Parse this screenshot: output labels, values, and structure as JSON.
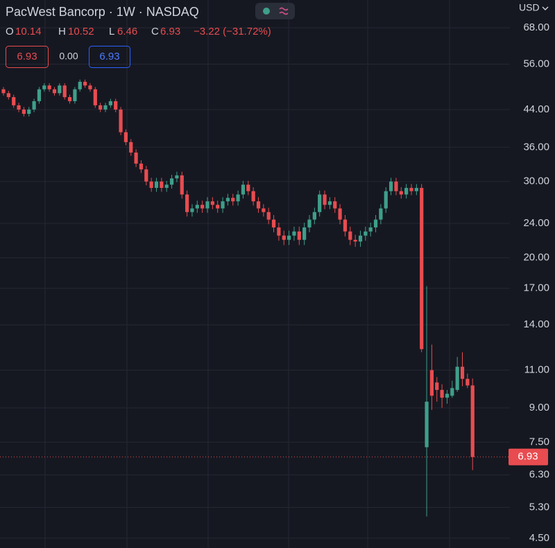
{
  "header": {
    "title": "PacWest Bancorp · 1W · NASDAQ",
    "labels": [
      "O",
      "H",
      "L",
      "C"
    ],
    "change": "−3.22 (−31.72%)",
    "spread": "0.00",
    "currency": "USD"
  },
  "chart_data": {
    "type": "candlestick",
    "log_scale": true,
    "grid": true,
    "up_color": "#3e9f8a",
    "down_color": "#e84c50",
    "ylim": [
      4.27,
      78.8
    ],
    "yticks": [
      {
        "value": 4.5,
        "label": "4.50"
      },
      {
        "value": 5.3,
        "label": "5.30"
      },
      {
        "value": 6.3,
        "label": "6.30"
      },
      {
        "value": 7.5,
        "label": "7.50"
      },
      {
        "value": 9,
        "label": "9.00"
      },
      {
        "value": 11,
        "label": "11.00"
      },
      {
        "value": 14,
        "label": "14.00"
      },
      {
        "value": 17,
        "label": "17.00"
      },
      {
        "value": 20,
        "label": "20.00"
      },
      {
        "value": 24,
        "label": "24.00"
      },
      {
        "value": 30,
        "label": "30.00"
      },
      {
        "value": 36,
        "label": "36.00"
      },
      {
        "value": 44,
        "label": "44.00"
      },
      {
        "value": 56,
        "label": "56.00"
      },
      {
        "value": 68,
        "label": "68.00"
      }
    ],
    "open": [
      49,
      48,
      47,
      45,
      44,
      43,
      44,
      46,
      49,
      50,
      49,
      48,
      50,
      47,
      46,
      49,
      51,
      50,
      49,
      45,
      44,
      45,
      46,
      44,
      39,
      37,
      35,
      33,
      32,
      30,
      29,
      30,
      29,
      29.5,
      30.5,
      31,
      28,
      25.5,
      26,
      26.5,
      26,
      27,
      26.5,
      26,
      27,
      27.5,
      27,
      28,
      29.5,
      28.5,
      27,
      26,
      25.5,
      24.5,
      23.5,
      22.5,
      22,
      22.5,
      23,
      22,
      23.5,
      24.5,
      25.5,
      28,
      26.5,
      27,
      26,
      24.5,
      23,
      22,
      21.8,
      22.5,
      23,
      23.5,
      24.5,
      26,
      28.5,
      30,
      28.5,
      28,
      29,
      28.5,
      29,
      7.3,
      11.0,
      10.3,
      9.9,
      9.5,
      9.6,
      9.9,
      11.2,
      10.5,
      10.14
    ],
    "high": [
      49.6,
      48.6,
      47.6,
      45.6,
      44.6,
      44.6,
      46.6,
      49.6,
      50.6,
      50.6,
      49.6,
      50.6,
      50.6,
      47.6,
      49.6,
      51.6,
      51.6,
      50.6,
      49.6,
      45.6,
      45.6,
      46.6,
      46.6,
      44.6,
      39.6,
      37.6,
      35.6,
      33.6,
      32.6,
      30.6,
      30.6,
      30.6,
      30.1,
      31.1,
      31.6,
      31.6,
      28.6,
      26.6,
      27.1,
      27.1,
      27.6,
      27.6,
      27.1,
      27.6,
      28.1,
      28.1,
      28.6,
      30.1,
      30.1,
      29.1,
      27.6,
      26.6,
      26.1,
      25.1,
      24.1,
      23.1,
      23.1,
      23.6,
      23.6,
      24.1,
      25.1,
      26.1,
      28.6,
      28.6,
      27.6,
      27.6,
      26.6,
      25.1,
      23.6,
      22.6,
      23.1,
      23.6,
      24.1,
      25.1,
      26.6,
      29.1,
      30.6,
      30.6,
      29.1,
      29.6,
      29.6,
      29.6,
      29.6,
      17.2,
      12.6,
      10.6,
      10.2,
      9.9,
      10.4,
      11.8,
      12.1,
      10.8,
      10.52
    ],
    "low": [
      47.4,
      46.4,
      44.4,
      43.4,
      42.4,
      42.4,
      43.4,
      45.4,
      48.4,
      48.4,
      47.4,
      47.4,
      46.4,
      45.4,
      45.4,
      48.4,
      49.4,
      48.4,
      44.4,
      43.4,
      43.4,
      44.4,
      43.4,
      38.4,
      36.4,
      34.4,
      32.4,
      31.4,
      29.4,
      28.4,
      28.4,
      28.4,
      28.4,
      28.9,
      29.9,
      27.4,
      24.9,
      24.9,
      25.4,
      25.4,
      25.4,
      25.9,
      25.4,
      25.4,
      26.4,
      26.4,
      26.4,
      27.4,
      27.9,
      26.4,
      25.4,
      24.9,
      23.9,
      22.9,
      21.9,
      21.4,
      21.4,
      21.9,
      21.4,
      21.4,
      22.9,
      23.9,
      24.9,
      25.9,
      25.9,
      25.4,
      23.9,
      22.4,
      21.4,
      21.2,
      21.2,
      21.9,
      22.4,
      22.9,
      23.9,
      25.4,
      27.9,
      27.9,
      27.4,
      27.4,
      27.9,
      27.9,
      12.1,
      5.05,
      8.9,
      9.3,
      9.0,
      9.2,
      9.5,
      9.8,
      10.1,
      10.0,
      6.46
    ],
    "close": [
      48,
      47,
      45,
      44,
      43,
      44,
      46,
      49,
      50,
      49,
      48,
      50,
      47,
      46,
      49,
      51,
      50,
      49,
      45,
      44,
      45,
      46,
      44,
      39,
      37,
      35,
      33,
      32,
      30,
      29,
      30,
      29,
      29.5,
      30.5,
      31,
      28,
      25.5,
      26,
      26.5,
      26,
      27,
      26.5,
      26,
      27,
      27.5,
      27,
      28,
      29.5,
      28.5,
      27,
      26,
      25.5,
      24.5,
      23.5,
      22.5,
      22,
      22.5,
      23,
      22,
      23.5,
      24.5,
      25.5,
      28,
      26.5,
      27,
      26,
      24.5,
      23,
      22,
      21.8,
      22.5,
      23,
      23.5,
      24.5,
      26,
      28.5,
      30,
      28.5,
      28,
      29,
      28.5,
      29,
      12.3,
      9.3,
      9.6,
      9.9,
      9.5,
      9.7,
      10.0,
      11.2,
      10.5,
      10.14,
      6.93
    ]
  }
}
